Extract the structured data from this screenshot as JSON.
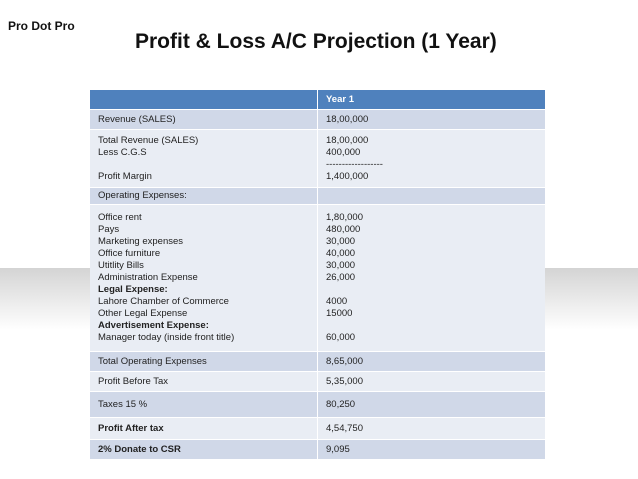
{
  "header": {
    "brand": "Pro Dot Pro",
    "title": "Profit & Loss A/C Projection (1 Year)"
  },
  "table": {
    "column_header": "Year 1",
    "rows": [
      {
        "lines": [
          {
            "label": "Revenue (SALES)",
            "value": "18,00,000"
          }
        ]
      },
      {
        "lines": [
          {
            "label": "Total Revenue (SALES)",
            "value": "18,00,000"
          },
          {
            "label": "Less C.G.S",
            "value": "400,000"
          },
          {
            "value": "------------------"
          },
          {
            "label": "Profit Margin",
            "value": "1,400,000"
          }
        ]
      },
      {
        "lines": [
          {
            "label": "Operating Expenses:"
          }
        ]
      },
      {
        "lines": [
          {
            "label": "Office rent",
            "value": "1,80,000"
          },
          {
            "label": "Pays",
            "value": "480,000"
          },
          {
            "label": "Marketing expenses",
            "value": "30,000"
          },
          {
            "label": "Office furniture",
            "value": "40,000"
          },
          {
            "label": "Utitlity Bills",
            "value": "30,000"
          },
          {
            "label": "Administration Expense",
            "value": "26,000"
          },
          {
            "label": "Legal Expense:",
            "bold": true
          },
          {
            "label": "Lahore Chamber of Commerce",
            "value": "4000"
          },
          {
            "label": "Other Legal Expense",
            "value": "15000"
          },
          {
            "label": "Advertisement Expense:",
            "bold": true
          },
          {
            "label": "Manager today (inside front title)",
            "value": "60,000"
          }
        ]
      },
      {
        "lines": [
          {
            "label": "Total Operating Expenses",
            "value": "8,65,000"
          }
        ]
      },
      {
        "lines": [
          {
            "label": "Profit  Before Tax",
            "value": "5,35,000"
          }
        ]
      },
      {
        "lines": [
          {
            "label": "Taxes 15 %",
            "value": "80,250"
          }
        ]
      },
      {
        "lines": [
          {
            "label": "Profit  After tax",
            "value": "4,54,750",
            "bold": true
          }
        ]
      },
      {
        "lines": [
          {
            "label": "2% Donate to CSR",
            "value": "9,095",
            "bold": true
          }
        ]
      }
    ]
  }
}
